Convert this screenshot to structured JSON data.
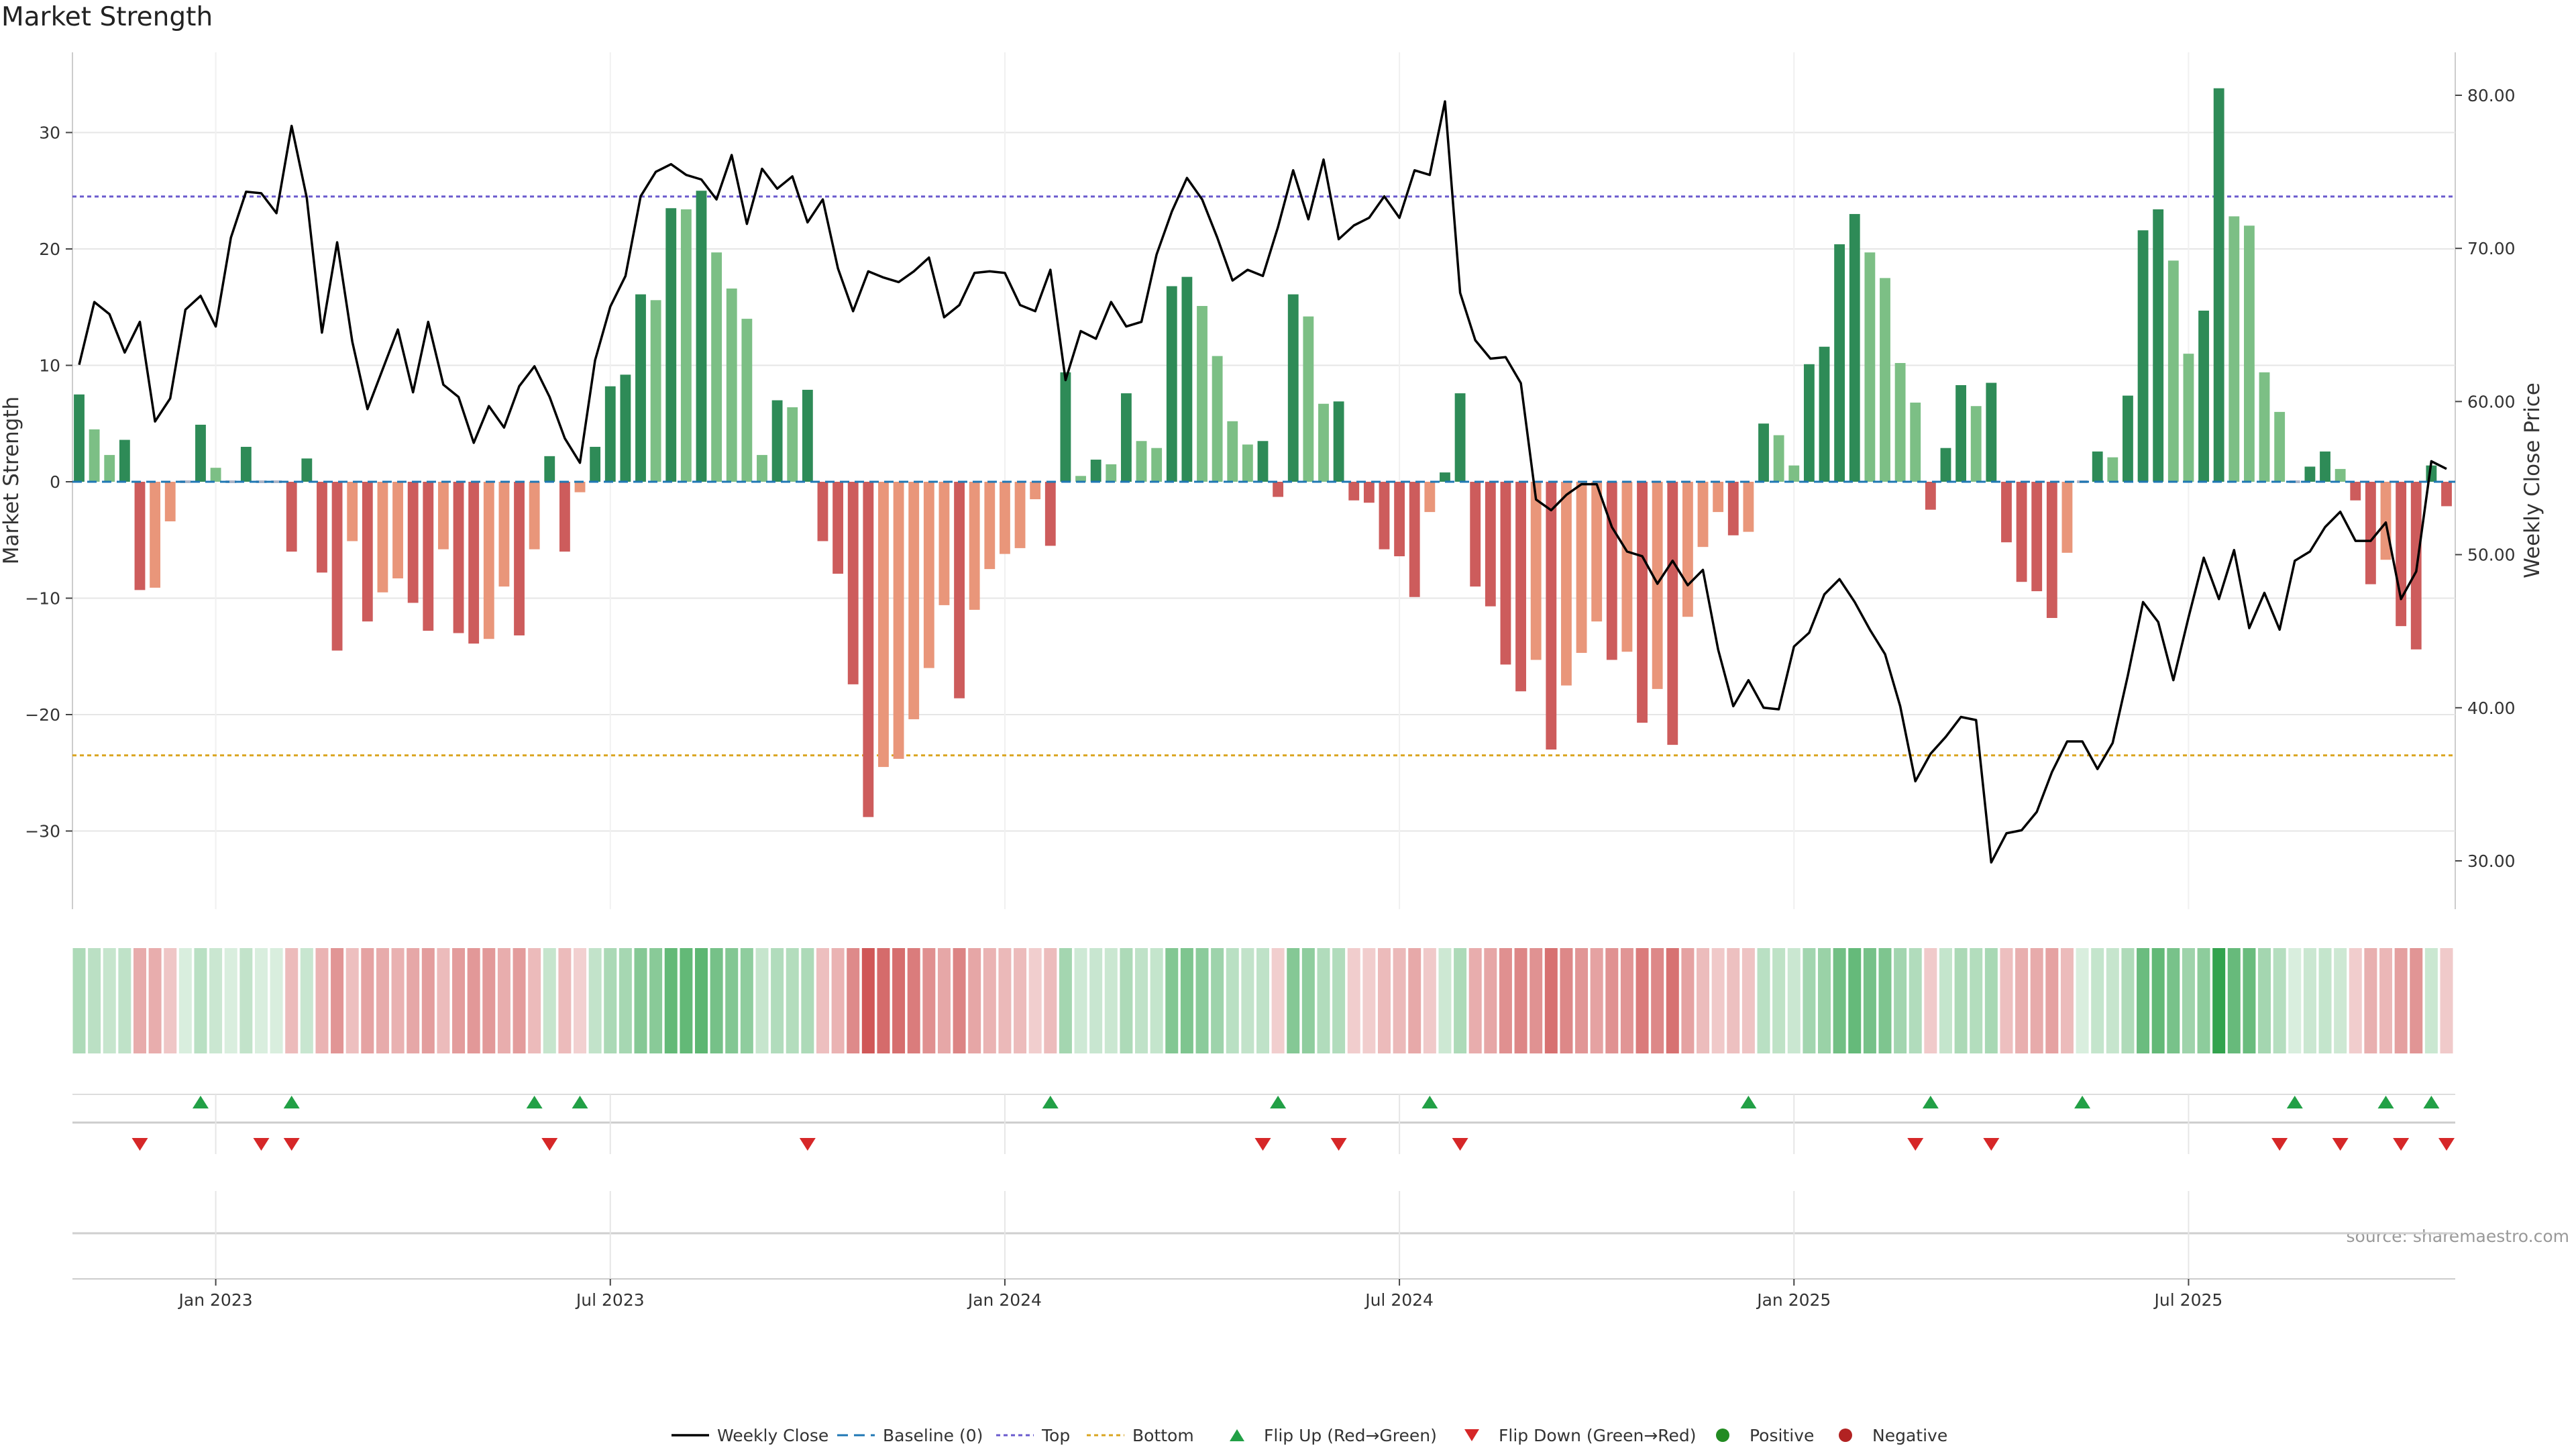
{
  "chart_data": {
    "type": "bar",
    "title": "Market Strength",
    "ylabel_left": "Market Strength",
    "ylabel_right": "Weekly Close Price",
    "source_note": "source: sharemaestro.com",
    "left_axis": {
      "ylim": [
        -37,
        37
      ],
      "ticks": [
        30,
        20,
        10,
        0,
        -10,
        -20,
        -30
      ],
      "tick_labels": [
        "30",
        "20",
        "10",
        "0",
        "−10",
        "−20",
        "−30"
      ]
    },
    "right_axis": {
      "ylim": [
        26,
        82
      ],
      "ticks": [
        80,
        70,
        60,
        50,
        40,
        30
      ],
      "tick_labels": [
        "80.00",
        "70.00",
        "60.00",
        "50.00",
        "40.00",
        "30.00"
      ]
    },
    "reference_lines": {
      "baseline": 0,
      "top": 24.5,
      "bottom": -23.5
    },
    "x_axis": {
      "start_week": 0,
      "end_week": 156,
      "tick_weeks": [
        9,
        35,
        61,
        87,
        113,
        139
      ],
      "tick_labels": [
        "Jan 2023",
        "Jul 2023",
        "Jan 2024",
        "Jul 2024",
        "Jan 2025",
        "Jul 2025"
      ]
    },
    "strength": [
      7.5,
      4.5,
      2.3,
      3.6,
      -9.3,
      -9.1,
      -3.4,
      0,
      4.9,
      1.2,
      0,
      3.0,
      0,
      0,
      -6.0,
      2.0,
      -7.8,
      -14.5,
      -5.1,
      -12.0,
      -9.5,
      -8.3,
      -10.4,
      -12.8,
      -5.8,
      -13.0,
      -13.9,
      -13.5,
      -9.0,
      -13.2,
      -5.8,
      2.2,
      -6.0,
      -0.9,
      3.0,
      8.2,
      9.2,
      16.1,
      15.6,
      23.5,
      23.4,
      25.0,
      19.7,
      16.6,
      14.0,
      2.3,
      7.0,
      6.4,
      7.9,
      -5.1,
      -7.9,
      -17.4,
      -28.8,
      -24.5,
      -23.8,
      -20.4,
      -16.0,
      -10.6,
      -18.6,
      -11.0,
      -7.5,
      -6.2,
      -5.7,
      -1.5,
      -5.5,
      9.4,
      0.5,
      1.9,
      1.5,
      7.6,
      3.5,
      2.9,
      16.8,
      17.6,
      15.1,
      10.8,
      5.2,
      3.2,
      3.5,
      -1.3,
      16.1,
      14.2,
      6.7,
      6.9,
      -1.6,
      -1.8,
      -5.8,
      -6.4,
      -9.9,
      -2.6,
      0.8,
      7.6,
      -9.0,
      -10.7,
      -15.7,
      -18.0,
      -15.3,
      -23.0,
      -17.5,
      -14.7,
      -12.0,
      -15.3,
      -14.6,
      -20.7,
      -17.8,
      -22.6,
      -11.6,
      -5.6,
      -2.6,
      -4.6,
      -4.3,
      5.0,
      4.0,
      1.4,
      10.1,
      11.6,
      20.4,
      23.0,
      19.7,
      17.5,
      10.2,
      6.8,
      -2.4,
      2.9,
      8.3,
      6.5,
      8.5,
      -5.2,
      -8.6,
      -9.4,
      -11.7,
      -6.1,
      0,
      2.6,
      2.1,
      7.4,
      21.6,
      23.4,
      19.0,
      11.0,
      14.7,
      33.8,
      22.8,
      22.0,
      9.4,
      6.0,
      0,
      1.3,
      2.6,
      1.1,
      -1.6,
      -8.8,
      -6.7,
      -12.4,
      -14.4,
      1.4,
      -2.1
    ],
    "close": [
      62.4,
      66.5,
      65.7,
      63.2,
      65.2,
      58.7,
      60.2,
      66.0,
      66.9,
      64.9,
      70.7,
      73.7,
      73.6,
      72.3,
      78.0,
      73.3,
      64.5,
      70.4,
      63.9,
      59.5,
      62.1,
      64.7,
      60.6,
      65.2,
      61.1,
      60.3,
      57.3,
      59.7,
      58.3,
      61.0,
      62.3,
      60.3,
      57.6,
      56.0,
      62.7,
      66.2,
      68.2,
      73.4,
      75.0,
      75.5,
      74.8,
      74.5,
      73.2,
      76.1,
      71.6,
      75.2,
      73.9,
      74.7,
      71.7,
      73.2,
      68.7,
      65.9,
      68.5,
      68.1,
      67.8,
      68.5,
      69.4,
      65.5,
      66.3,
      68.4,
      68.5,
      68.4,
      66.3,
      65.9,
      68.6,
      61.4,
      64.6,
      64.1,
      66.5,
      64.9,
      65.2,
      69.6,
      72.4,
      74.6,
      73.2,
      70.7,
      67.9,
      68.6,
      68.2,
      71.4,
      75.1,
      71.9,
      75.8,
      70.6,
      71.5,
      72.0,
      73.4,
      72.0,
      75.1,
      74.8,
      79.6,
      67.1,
      64.0,
      62.8,
      62.9,
      61.2,
      53.6,
      52.9,
      53.9,
      54.6,
      54.6,
      51.8,
      50.2,
      49.9,
      48.1,
      49.6,
      48.0,
      49.0,
      43.8,
      40.1,
      41.8,
      40.0,
      39.9,
      44.0,
      44.9,
      47.4,
      48.4,
      46.9,
      45.1,
      43.5,
      40.1,
      35.2,
      37.0,
      38.1,
      39.4,
      39.2,
      29.9,
      31.8,
      32.0,
      33.2,
      35.8,
      37.8,
      37.8,
      36.0,
      37.7,
      42.1,
      46.9,
      45.6,
      41.8,
      45.9,
      49.8,
      47.1,
      50.3,
      45.2,
      47.5,
      45.1,
      49.6,
      50.2,
      51.8,
      52.8,
      50.9,
      50.9,
      52.1,
      47.1,
      48.9,
      56.1,
      55.6
    ],
    "heat_strip": "per-week colour cell (green = positive strength, red = negative; darker = stronger)",
    "flip_up_weeks": [
      8,
      14,
      30,
      33,
      64,
      79,
      89,
      110,
      122,
      132,
      146,
      152,
      155
    ],
    "flip_down_weeks": [
      4,
      12,
      14,
      31,
      48,
      78,
      83,
      91,
      121,
      126,
      145,
      149,
      153,
      156
    ],
    "colors": {
      "positive_dark": "#2e8b57",
      "positive_light": "#7cbf85",
      "negative_dark": "#cd5c5c",
      "negative_light": "#e9967a",
      "close_line": "#000000",
      "baseline": "#1f77b4",
      "top_line": "#6a5acd",
      "bottom_line": "#daa520",
      "flip_up": "#22a046",
      "flip_down": "#d62728",
      "positive_dot": "#228b22",
      "negative_dot": "#b22222",
      "grid": "#e6e6e6"
    },
    "legend": {
      "placement": "bottom-center",
      "items": [
        {
          "key": "close",
          "label": "Weekly Close"
        },
        {
          "key": "baseline",
          "label": "Baseline (0)"
        },
        {
          "key": "top",
          "label": "Top"
        },
        {
          "key": "bottom",
          "label": "Bottom"
        },
        {
          "key": "flipup",
          "label": "Flip Up (Red→Green)"
        },
        {
          "key": "flipdown",
          "label": "Flip Down (Green→Red)"
        },
        {
          "key": "pos",
          "label": "Positive"
        },
        {
          "key": "neg",
          "label": "Negative"
        }
      ]
    }
  }
}
